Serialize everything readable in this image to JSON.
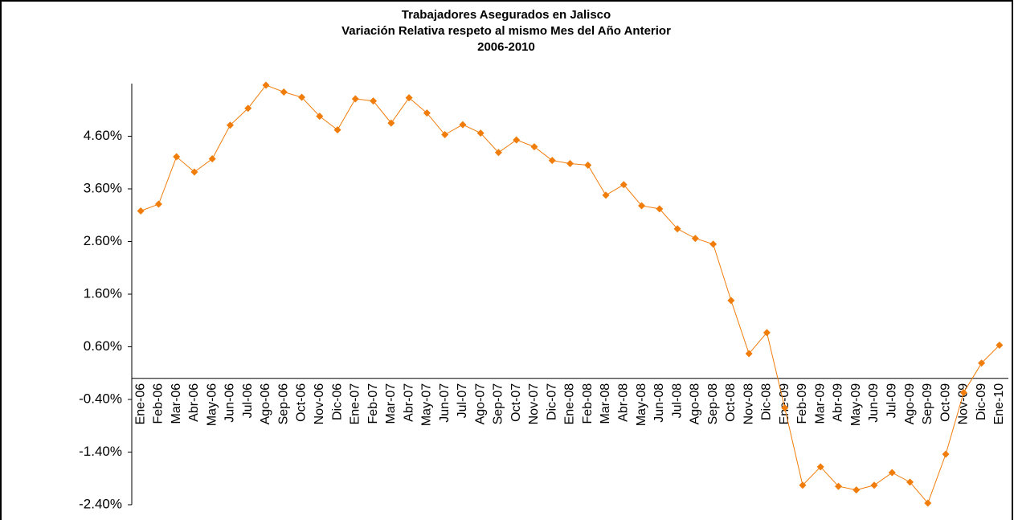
{
  "chart_data": {
    "type": "line",
    "title": [
      "Trabajadores Asegurados en Jalisco",
      "Variación Relativa respeto al mismo Mes del Año Anterior",
      "2006-2010"
    ],
    "categories": [
      "Ene-06",
      "Feb-06",
      "Mar-06",
      "Abr-06",
      "May-06",
      "Jun-06",
      "Jul-06",
      "Ago-06",
      "Sep-06",
      "Oct-06",
      "Nov-06",
      "Dic-06",
      "Ene-07",
      "Feb-07",
      "Mar-07",
      "Abr-07",
      "May-07",
      "Jun-07",
      "Jul-07",
      "Ago-07",
      "Sep-07",
      "Oct-07",
      "Nov-07",
      "Dic-07",
      "Ene-08",
      "Feb-08",
      "Mar-08",
      "Abr-08",
      "May-08",
      "Jun-08",
      "Jul-08",
      "Ago-08",
      "Sep-08",
      "Oct-08",
      "Nov-08",
      "Dic-08",
      "Ene-09",
      "Feb-09",
      "Mar-09",
      "Abr-09",
      "May-09",
      "Jun-09",
      "Jul-09",
      "Ago-09",
      "Sep-09",
      "Oct-09",
      "Nov-09",
      "Dic-09",
      "Ene-10"
    ],
    "series": [
      {
        "color": "#f07c0a",
        "values": [
          3.18,
          3.31,
          4.21,
          3.92,
          4.17,
          4.81,
          5.13,
          5.57,
          5.44,
          5.34,
          4.98,
          4.72,
          5.31,
          5.27,
          4.85,
          5.33,
          5.04,
          4.63,
          4.82,
          4.66,
          4.29,
          4.53,
          4.4,
          4.14,
          4.08,
          4.05,
          3.48,
          3.68,
          3.28,
          3.22,
          2.84,
          2.66,
          2.55,
          1.48,
          0.47,
          0.87,
          -0.56,
          -2.03,
          -1.68,
          -2.05,
          -2.12,
          -2.03,
          -1.79,
          -1.97,
          -2.37,
          -1.44,
          -0.27,
          0.29,
          0.63
        ]
      }
    ],
    "ylim": [
      -2.4,
      5.6
    ],
    "yticks": [
      {
        "value": -2.4,
        "label": "-2.40%"
      },
      {
        "value": -1.4,
        "label": "-1.40%"
      },
      {
        "value": -0.4,
        "label": "-0.40%"
      },
      {
        "value": 0.6,
        "label": "0.60%"
      },
      {
        "value": 1.6,
        "label": "1.60%"
      },
      {
        "value": 2.6,
        "label": "2.60%"
      },
      {
        "value": 3.6,
        "label": "3.60%"
      },
      {
        "value": 4.6,
        "label": "4.60%"
      }
    ]
  }
}
